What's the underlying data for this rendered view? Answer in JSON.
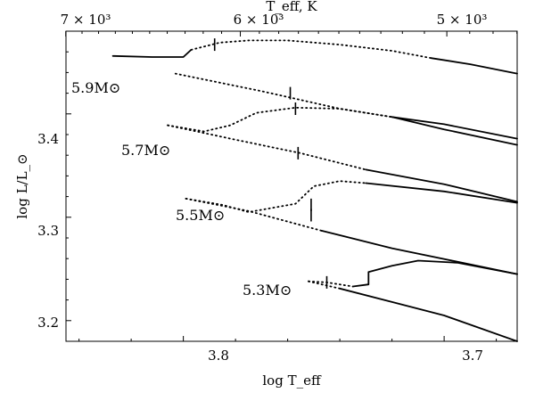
{
  "chart_data": {
    "type": "line",
    "title": "",
    "xlabel": "log T_eff",
    "ylabel": "log L/L_⊙",
    "top_axis_label": "T_eff, K",
    "xlim": [
      3.845,
      3.672
    ],
    "ylim": [
      3.18,
      3.48
    ],
    "x_ticks": [
      3.8,
      3.7
    ],
    "x_tick_labels": [
      "3.8",
      "3.7"
    ],
    "y_ticks": [
      3.2,
      3.3,
      3.4
    ],
    "y_tick_labels": [
      "3.2",
      "3.3",
      "3.4"
    ],
    "top_ticks": [
      7000,
      6000,
      5000
    ],
    "top_tick_labels": [
      "7 × 10³",
      "6 × 10³",
      "5 × 10³"
    ],
    "grid": false,
    "series": [
      {
        "name": "5.9M⊙",
        "solid_before": [
          [
            3.827,
            3.456
          ],
          [
            3.812,
            3.455
          ],
          [
            3.8,
            3.455
          ],
          [
            3.797,
            3.462
          ]
        ],
        "dotted_main": [
          [
            3.797,
            3.462
          ],
          [
            3.786,
            3.469
          ],
          [
            3.775,
            3.471
          ],
          [
            3.76,
            3.471
          ],
          [
            3.74,
            3.467
          ],
          [
            3.72,
            3.461
          ],
          [
            3.705,
            3.454
          ]
        ],
        "solid_after": [
          [
            3.705,
            3.454
          ],
          [
            3.69,
            3.448
          ],
          [
            3.672,
            3.439
          ]
        ],
        "dotted_back": [
          [
            3.803,
            3.439
          ],
          [
            3.77,
            3.422
          ],
          [
            3.74,
            3.405
          ],
          [
            3.72,
            3.397
          ]
        ],
        "solid_back": [
          [
            3.72,
            3.397
          ],
          [
            3.7,
            3.385
          ],
          [
            3.672,
            3.37
          ]
        ],
        "markers": [
          [
            3.788,
            3.467
          ],
          [
            3.759,
            3.42
          ]
        ]
      },
      {
        "name": "5.7M⊙",
        "dotted_main": [
          [
            3.806,
            3.389
          ],
          [
            3.792,
            3.383
          ],
          [
            3.782,
            3.389
          ],
          [
            3.772,
            3.401
          ],
          [
            3.757,
            3.406
          ],
          [
            3.74,
            3.405
          ],
          [
            3.72,
            3.397
          ]
        ],
        "solid_after": [
          [
            3.72,
            3.397
          ],
          [
            3.7,
            3.39
          ],
          [
            3.672,
            3.376
          ]
        ],
        "dotted_back": [
          [
            3.806,
            3.389
          ],
          [
            3.78,
            3.375
          ],
          [
            3.755,
            3.362
          ],
          [
            3.73,
            3.346
          ]
        ],
        "solid_back": [
          [
            3.73,
            3.346
          ],
          [
            3.7,
            3.332
          ],
          [
            3.672,
            3.315
          ]
        ],
        "markers": [
          [
            3.757,
            3.405
          ],
          [
            3.756,
            3.362
          ]
        ]
      },
      {
        "name": "5.5M⊙",
        "dotted_main": [
          [
            3.799,
            3.318
          ],
          [
            3.785,
            3.312
          ],
          [
            3.775,
            3.305
          ],
          [
            3.757,
            3.313
          ],
          [
            3.75,
            3.33
          ],
          [
            3.74,
            3.335
          ],
          [
            3.73,
            3.333
          ]
        ],
        "solid_after": [
          [
            3.73,
            3.333
          ],
          [
            3.7,
            3.325
          ],
          [
            3.672,
            3.314
          ]
        ],
        "dotted_back": [
          [
            3.799,
            3.318
          ],
          [
            3.775,
            3.306
          ],
          [
            3.747,
            3.287
          ]
        ],
        "solid_back": [
          [
            3.747,
            3.287
          ],
          [
            3.72,
            3.27
          ],
          [
            3.672,
            3.245
          ]
        ],
        "markers": [
          [
            3.751,
            3.312
          ],
          [
            3.751,
            3.302
          ]
        ]
      },
      {
        "name": "5.3M⊙",
        "dotted_main": [
          [
            3.752,
            3.238
          ],
          [
            3.745,
            3.237
          ],
          [
            3.735,
            3.233
          ]
        ],
        "solid_after": [
          [
            3.735,
            3.233
          ],
          [
            3.729,
            3.235
          ],
          [
            3.729,
            3.247
          ],
          [
            3.72,
            3.253
          ],
          [
            3.71,
            3.258
          ],
          [
            3.695,
            3.256
          ],
          [
            3.672,
            3.245
          ]
        ],
        "dotted_back": [
          [
            3.752,
            3.238
          ],
          [
            3.74,
            3.231
          ]
        ],
        "solid_back": [
          [
            3.74,
            3.231
          ],
          [
            3.72,
            3.218
          ],
          [
            3.7,
            3.205
          ],
          [
            3.672,
            3.18
          ]
        ],
        "markers": [
          [
            3.745,
            3.237
          ]
        ]
      }
    ]
  }
}
